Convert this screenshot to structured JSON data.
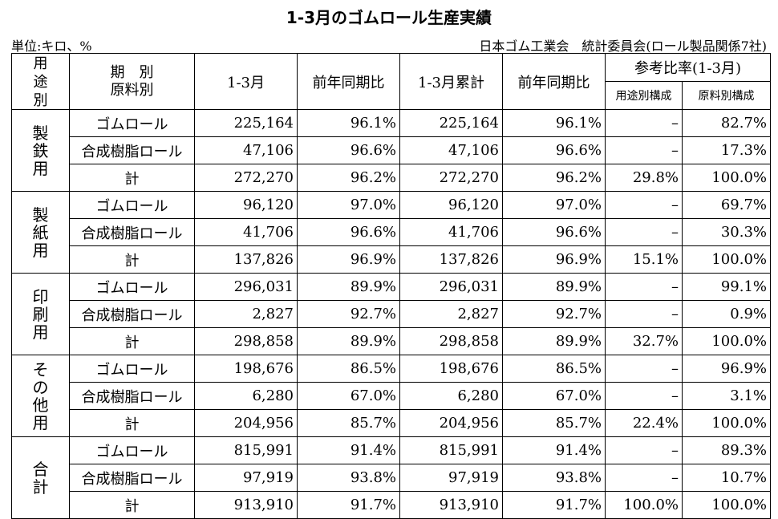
{
  "title": "1-3月のゴムロール生産実績",
  "unit": "単位:キロ、%",
  "source": "日本ゴム工業会　統計委員会(ロール製品関係7社)",
  "headers": {
    "use": "用\n途\n別",
    "period": "期　別",
    "material": "原料別",
    "q": "1-3月",
    "yoy": "前年同期比",
    "cum": "1-3月累計",
    "cum_yoy": "前年同期比",
    "ref": "参考比率(1-3月)",
    "ref_use": "用途別構成",
    "ref_mat": "原料別構成"
  },
  "groups": [
    {
      "use": "製\n鉄\n用",
      "rows": [
        {
          "material": "ゴムロール",
          "q": "225,164",
          "yoy": "96.1%",
          "cum": "225,164",
          "cum_yoy": "96.1%",
          "ref_use": "–",
          "ref_mat": "82.7%"
        },
        {
          "material": "合成樹脂ロール",
          "q": "47,106",
          "yoy": "96.6%",
          "cum": "47,106",
          "cum_yoy": "96.6%",
          "ref_use": "–",
          "ref_mat": "17.3%"
        },
        {
          "material": "計",
          "q": "272,270",
          "yoy": "96.2%",
          "cum": "272,270",
          "cum_yoy": "96.2%",
          "ref_use": "29.8%",
          "ref_mat": "100.0%"
        }
      ]
    },
    {
      "use": "製\n紙\n用",
      "rows": [
        {
          "material": "ゴムロール",
          "q": "96,120",
          "yoy": "97.0%",
          "cum": "96,120",
          "cum_yoy": "97.0%",
          "ref_use": "–",
          "ref_mat": "69.7%"
        },
        {
          "material": "合成樹脂ロール",
          "q": "41,706",
          "yoy": "96.6%",
          "cum": "41,706",
          "cum_yoy": "96.6%",
          "ref_use": "–",
          "ref_mat": "30.3%"
        },
        {
          "material": "計",
          "q": "137,826",
          "yoy": "96.9%",
          "cum": "137,826",
          "cum_yoy": "96.9%",
          "ref_use": "15.1%",
          "ref_mat": "100.0%"
        }
      ]
    },
    {
      "use": "印\n刷\n用",
      "rows": [
        {
          "material": "ゴムロール",
          "q": "296,031",
          "yoy": "89.9%",
          "cum": "296,031",
          "cum_yoy": "89.9%",
          "ref_use": "–",
          "ref_mat": "99.1%"
        },
        {
          "material": "合成樹脂ロール",
          "q": "2,827",
          "yoy": "92.7%",
          "cum": "2,827",
          "cum_yoy": "92.7%",
          "ref_use": "–",
          "ref_mat": "0.9%"
        },
        {
          "material": "計",
          "q": "298,858",
          "yoy": "89.9%",
          "cum": "298,858",
          "cum_yoy": "89.9%",
          "ref_use": "32.7%",
          "ref_mat": "100.0%"
        }
      ]
    },
    {
      "use": "そ\nの\n他\n用",
      "rows": [
        {
          "material": "ゴムロール",
          "q": "198,676",
          "yoy": "86.5%",
          "cum": "198,676",
          "cum_yoy": "86.5%",
          "ref_use": "–",
          "ref_mat": "96.9%"
        },
        {
          "material": "合成樹脂ロール",
          "q": "6,280",
          "yoy": "67.0%",
          "cum": "6,280",
          "cum_yoy": "67.0%",
          "ref_use": "–",
          "ref_mat": "3.1%"
        },
        {
          "material": "計",
          "q": "204,956",
          "yoy": "85.7%",
          "cum": "204,956",
          "cum_yoy": "85.7%",
          "ref_use": "22.4%",
          "ref_mat": "100.0%"
        }
      ]
    },
    {
      "use": "合\n計",
      "rows": [
        {
          "material": "ゴムロール",
          "q": "815,991",
          "yoy": "91.4%",
          "cum": "815,991",
          "cum_yoy": "91.4%",
          "ref_use": "–",
          "ref_mat": "89.3%"
        },
        {
          "material": "合成樹脂ロール",
          "q": "97,919",
          "yoy": "93.8%",
          "cum": "97,919",
          "cum_yoy": "93.8%",
          "ref_use": "–",
          "ref_mat": "10.7%"
        },
        {
          "material": "計",
          "q": "913,910",
          "yoy": "91.7%",
          "cum": "913,910",
          "cum_yoy": "91.7%",
          "ref_use": "100.0%",
          "ref_mat": "100.0%"
        }
      ]
    }
  ]
}
